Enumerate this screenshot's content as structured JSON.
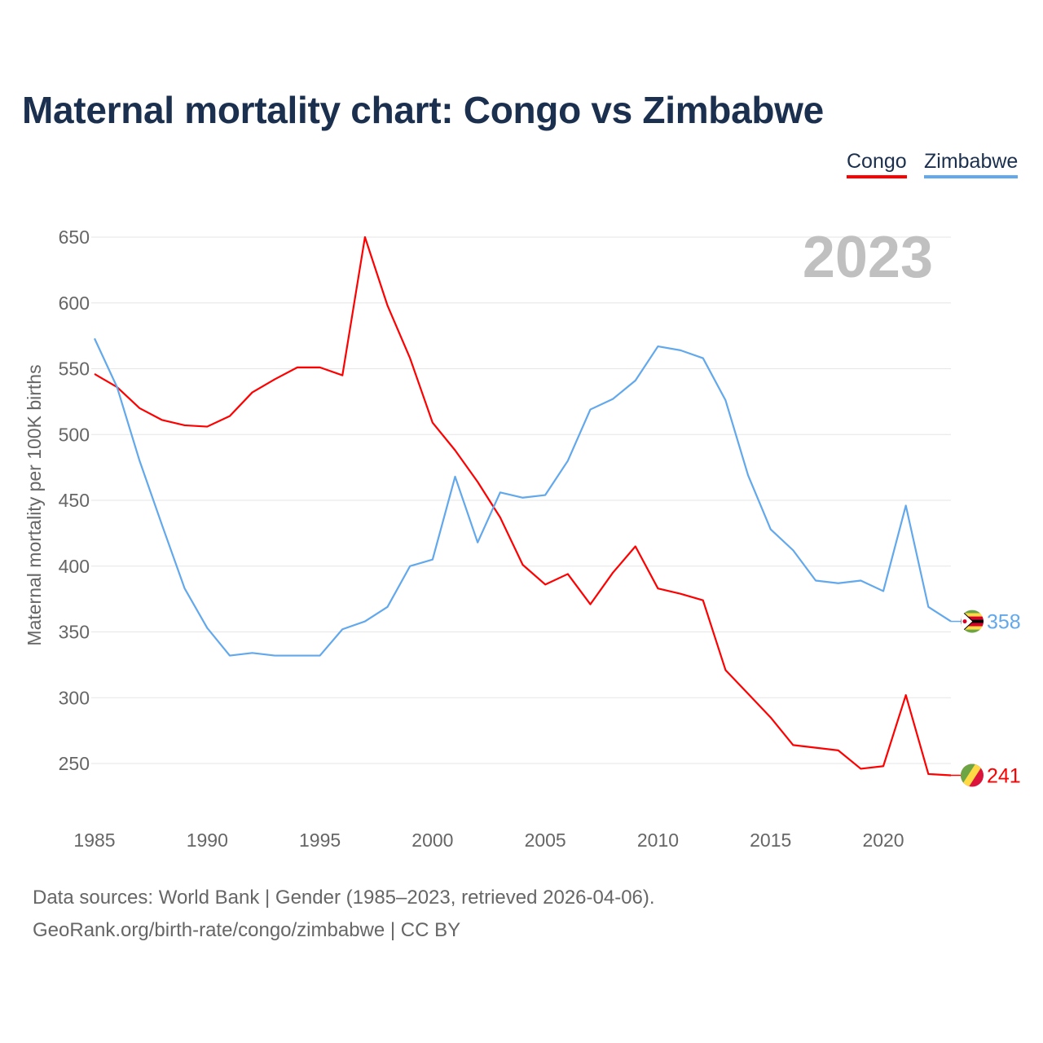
{
  "title": "Maternal mortality chart: Congo vs Zimbabwe",
  "legend": [
    {
      "label": "Congo",
      "color": "#ff0000"
    },
    {
      "label": "Zimbabwe",
      "color": "#62a8ec"
    }
  ],
  "footer": {
    "line1": "Data sources: World Bank | Gender (1985–2023, retrieved 2026-04-06).",
    "line2": "GeoRank.org/birth-rate/congo/zimbabwe | CC BY"
  },
  "chart_data": {
    "type": "line",
    "title": "Maternal mortality chart: Congo vs Zimbabwe",
    "ylabel": "Maternal mortality per 100K births",
    "xlabel": "",
    "year_label": "2023",
    "ylim": [
      200,
      650
    ],
    "xlim": [
      1985,
      2023
    ],
    "yticks": [
      250,
      300,
      350,
      400,
      450,
      500,
      550,
      600,
      650
    ],
    "xticks": [
      1985,
      1990,
      1995,
      2000,
      2005,
      2010,
      2015,
      2020
    ],
    "grid": true,
    "x": [
      1985,
      1986,
      1987,
      1988,
      1989,
      1990,
      1991,
      1992,
      1993,
      1994,
      1995,
      1996,
      1997,
      1998,
      1999,
      2000,
      2001,
      2002,
      2003,
      2004,
      2005,
      2006,
      2007,
      2008,
      2009,
      2010,
      2011,
      2012,
      2013,
      2014,
      2015,
      2016,
      2017,
      2018,
      2019,
      2020,
      2021,
      2022,
      2023
    ],
    "series": [
      {
        "name": "Congo",
        "color": "#ff0000",
        "end_label": "241",
        "values": [
          546,
          536,
          520,
          511,
          507,
          506,
          514,
          532,
          542,
          551,
          551,
          545,
          650,
          598,
          558,
          509,
          488,
          464,
          437,
          401,
          386,
          394,
          371,
          395,
          415,
          383,
          379,
          374,
          321,
          303,
          285,
          264,
          262,
          260,
          246,
          248,
          302,
          242,
          241
        ]
      },
      {
        "name": "Zimbabwe",
        "color": "#62a8ec",
        "end_label": "358",
        "values": [
          573,
          536,
          480,
          431,
          383,
          353,
          332,
          334,
          332,
          332,
          332,
          352,
          358,
          369,
          400,
          405,
          468,
          418,
          456,
          452,
          454,
          480,
          519,
          527,
          541,
          567,
          564,
          558,
          526,
          469,
          428,
          412,
          389,
          387,
          389,
          381,
          446,
          369,
          358
        ]
      }
    ]
  }
}
